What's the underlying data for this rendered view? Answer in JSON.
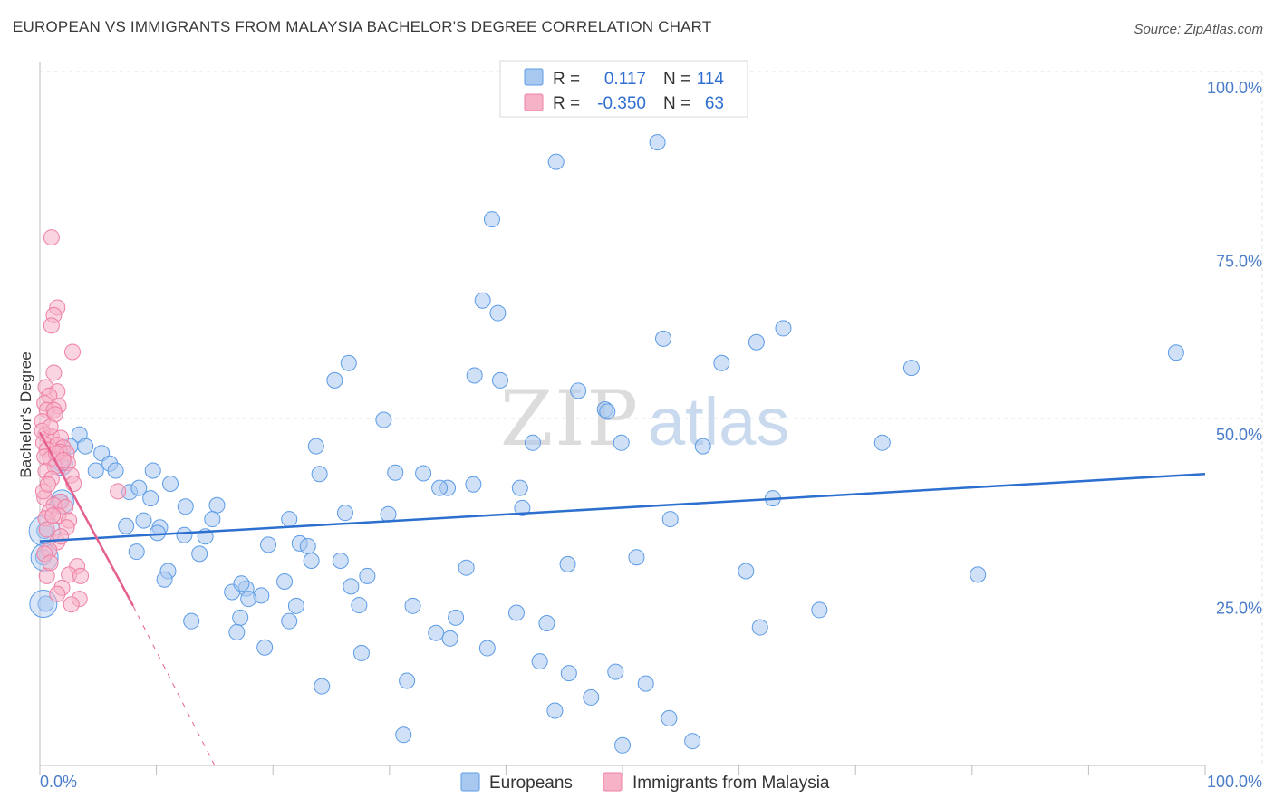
{
  "title": "EUROPEAN VS IMMIGRANTS FROM MALAYSIA BACHELOR'S DEGREE CORRELATION CHART",
  "source": "Source: ZipAtlas.com",
  "watermark": {
    "left": "ZIP",
    "right": "atlas"
  },
  "colors": {
    "blue": "#5b9be6",
    "blue_fill": "#a9c8f0",
    "blue_line": "#2c6fce",
    "pink": "#ef7fa3",
    "pink_fill": "#f6b3c8",
    "pink_line": "#e5608f",
    "tick": "#4a7cc9"
  },
  "chart_data": {
    "type": "scatter",
    "ylabel": "Bachelor's Degree",
    "xlabel": "",
    "xlim": [
      0,
      100
    ],
    "ylim": [
      0,
      100
    ],
    "x_tick_labels": [
      "0.0%",
      "100.0%"
    ],
    "y_tick_labels": [
      {
        "value": 25,
        "label": "25.0%"
      },
      {
        "value": 50,
        "label": "50.0%"
      },
      {
        "value": 75,
        "label": "75.0%"
      },
      {
        "value": 100,
        "label": "100.0%"
      }
    ],
    "legend": [
      {
        "series": "Europeans",
        "r_label": "R =",
        "r": "0.117",
        "n_label": "N =",
        "n": "114"
      },
      {
        "series": "Immigrants from Malaysia",
        "r_label": "R =",
        "r": "-0.350",
        "n_label": "N =",
        "n": "63"
      }
    ],
    "series": [
      {
        "name": "Europeans",
        "trend": {
          "x": [
            0,
            100
          ],
          "y": [
            32.3,
            42.0
          ]
        },
        "points": [
          [
            53,
            89.8
          ],
          [
            44.3,
            87
          ],
          [
            38.8,
            78.7
          ],
          [
            38,
            67
          ],
          [
            39.3,
            65.2
          ],
          [
            53.5,
            61.5
          ],
          [
            61.5,
            61
          ],
          [
            63.8,
            63
          ],
          [
            97.5,
            59.5
          ],
          [
            26.5,
            58
          ],
          [
            58.5,
            58
          ],
          [
            74.8,
            57.3
          ],
          [
            25.3,
            55.5
          ],
          [
            37.3,
            56.2
          ],
          [
            39.5,
            55.5
          ],
          [
            46.2,
            54
          ],
          [
            48.5,
            51.3
          ],
          [
            48.7,
            51
          ],
          [
            29.5,
            49.8
          ],
          [
            3.4,
            47.7
          ],
          [
            2.6,
            46
          ],
          [
            3.9,
            46
          ],
          [
            5.3,
            45
          ],
          [
            6.0,
            43.5
          ],
          [
            6.5,
            42.5
          ],
          [
            4.8,
            42.5
          ],
          [
            9.7,
            42.5
          ],
          [
            23.7,
            46
          ],
          [
            42.3,
            46.5
          ],
          [
            49.9,
            46.5
          ],
          [
            56.9,
            46
          ],
          [
            72.3,
            46.5
          ],
          [
            11.2,
            40.6
          ],
          [
            30.5,
            42.2
          ],
          [
            32.9,
            42.1
          ],
          [
            24.0,
            42
          ],
          [
            7.7,
            39.4
          ],
          [
            8.5,
            40
          ],
          [
            9.5,
            38.5
          ],
          [
            12.5,
            37.3
          ],
          [
            15.2,
            37.5
          ],
          [
            35.0,
            40.0
          ],
          [
            37.2,
            40.5
          ],
          [
            34.3,
            40
          ],
          [
            41.2,
            40
          ],
          [
            41.4,
            37.1
          ],
          [
            62.9,
            38.5
          ],
          [
            8.9,
            35.3
          ],
          [
            10.3,
            34.3
          ],
          [
            14.8,
            35.5
          ],
          [
            21.4,
            35.5
          ],
          [
            26.2,
            36.4
          ],
          [
            29.9,
            36.2
          ],
          [
            54.1,
            35.5
          ],
          [
            7.4,
            34.5
          ],
          [
            10.1,
            33.5
          ],
          [
            12.4,
            33.2
          ],
          [
            14.2,
            33
          ],
          [
            8.3,
            30.8
          ],
          [
            13.7,
            30.5
          ],
          [
            19.6,
            31.8
          ],
          [
            22.3,
            32.0
          ],
          [
            23.0,
            31.6
          ],
          [
            23.3,
            29.5
          ],
          [
            25.8,
            29.5
          ],
          [
            36.6,
            28.5
          ],
          [
            45.3,
            29
          ],
          [
            51.2,
            30
          ],
          [
            60.6,
            28
          ],
          [
            80.5,
            27.5
          ],
          [
            11.0,
            28.0
          ],
          [
            10.7,
            26.8
          ],
          [
            17.7,
            25.5
          ],
          [
            16.5,
            25
          ],
          [
            21.0,
            26.5
          ],
          [
            17.3,
            26.2
          ],
          [
            19.0,
            24.5
          ],
          [
            17.9,
            24.0
          ],
          [
            26.7,
            25.8
          ],
          [
            28.1,
            27.3
          ],
          [
            22.0,
            23.0
          ],
          [
            27.4,
            23.1
          ],
          [
            32.0,
            23.0
          ],
          [
            40.9,
            22
          ],
          [
            66.9,
            22.4
          ],
          [
            13.0,
            20.8
          ],
          [
            17.2,
            21.3
          ],
          [
            21.4,
            20.8
          ],
          [
            35.7,
            21.3
          ],
          [
            43.5,
            20.5
          ],
          [
            16.9,
            19.2
          ],
          [
            34.0,
            19.1
          ],
          [
            35.2,
            18.3
          ],
          [
            61.8,
            19.9
          ],
          [
            19.3,
            17.0
          ],
          [
            27.6,
            16.2
          ],
          [
            38.4,
            16.9
          ],
          [
            42.9,
            15
          ],
          [
            45.4,
            13.3
          ],
          [
            49.4,
            13.5
          ],
          [
            31.5,
            12.2
          ],
          [
            52.0,
            11.8
          ],
          [
            24.2,
            11.4
          ],
          [
            47.3,
            9.8
          ],
          [
            44.2,
            7.9
          ],
          [
            54.0,
            6.8
          ],
          [
            31.2,
            4.4
          ],
          [
            50.0,
            2.9
          ],
          [
            56.0,
            3.5
          ],
          [
            0.3,
            30.0
          ],
          [
            0.4,
            33.8
          ],
          [
            0.5,
            23.3
          ],
          [
            1.7,
            38.0
          ],
          [
            1.8,
            43.5
          ]
        ]
      },
      {
        "name": "Immigrants from Malaysia",
        "trend": {
          "x": [
            0,
            8
          ],
          "y": [
            48.0,
            23.0
          ],
          "dash_x": [
            8,
            15
          ],
          "dash_y": [
            23.0,
            0
          ]
        },
        "points": [
          [
            1.0,
            76.1
          ],
          [
            1.5,
            66.0
          ],
          [
            1.2,
            64.9
          ],
          [
            1.0,
            63.4
          ],
          [
            2.8,
            59.6
          ],
          [
            1.2,
            56.6
          ],
          [
            0.5,
            54.5
          ],
          [
            1.5,
            53.9
          ],
          [
            0.8,
            53.3
          ],
          [
            0.4,
            52.2
          ],
          [
            1.6,
            51.8
          ],
          [
            0.6,
            51.2
          ],
          [
            1.2,
            51.2
          ],
          [
            1.3,
            50.6
          ],
          [
            0.2,
            49.6
          ],
          [
            0.5,
            47.7
          ],
          [
            1.0,
            47.4
          ],
          [
            1.8,
            47.2
          ],
          [
            0.3,
            46.5
          ],
          [
            1.5,
            46.2
          ],
          [
            2.0,
            45.8
          ],
          [
            0.6,
            45.5
          ],
          [
            1.7,
            45.2
          ],
          [
            2.3,
            45.0
          ],
          [
            0.4,
            44.5
          ],
          [
            0.9,
            44.2
          ],
          [
            2.4,
            43.6
          ],
          [
            1.3,
            43.1
          ],
          [
            0.5,
            42.4
          ],
          [
            2.7,
            41.8
          ],
          [
            1.0,
            41.3
          ],
          [
            2.9,
            40.6
          ],
          [
            6.7,
            39.5
          ],
          [
            0.4,
            38.6
          ],
          [
            1.8,
            38.0
          ],
          [
            1.2,
            37.5
          ],
          [
            2.2,
            37.2
          ],
          [
            0.8,
            36.5
          ],
          [
            1.6,
            36.0
          ],
          [
            0.5,
            35.6
          ],
          [
            2.5,
            35.3
          ],
          [
            2.3,
            34.3
          ],
          [
            1.5,
            32.2
          ],
          [
            0.8,
            31.0
          ],
          [
            3.2,
            28.7
          ],
          [
            2.5,
            27.5
          ],
          [
            0.6,
            27.3
          ],
          [
            3.5,
            27.3
          ],
          [
            1.9,
            25.6
          ],
          [
            1.5,
            24.7
          ],
          [
            3.4,
            24.0
          ],
          [
            2.7,
            23.2
          ],
          [
            0.4,
            30.5
          ],
          [
            0.9,
            29.2
          ],
          [
            0.3,
            39.5
          ],
          [
            0.7,
            40.5
          ],
          [
            1.4,
            45.0
          ],
          [
            2.0,
            44.0
          ],
          [
            0.2,
            48.2
          ],
          [
            0.9,
            48.8
          ],
          [
            1.1,
            36.0
          ],
          [
            0.6,
            34.0
          ],
          [
            1.8,
            33.0
          ]
        ]
      }
    ]
  }
}
